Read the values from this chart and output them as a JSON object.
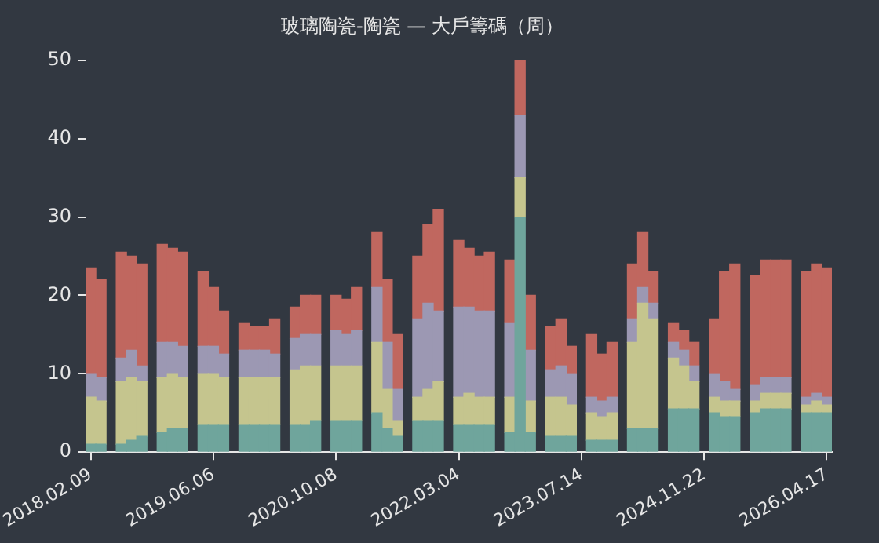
{
  "chart_data": {
    "type": "bar",
    "title": "玻璃陶瓷-陶瓷 — 大戶籌碼（周）",
    "stacked": true,
    "grid": false,
    "legend": false,
    "categories": [
      "2018.02.09",
      null,
      null,
      null,
      null,
      null,
      null,
      null,
      null,
      null,
      null,
      null,
      "2019.06.06",
      null,
      null,
      null,
      null,
      null,
      null,
      null,
      null,
      null,
      null,
      null,
      "2020.10.08",
      null,
      null,
      null,
      null,
      null,
      null,
      null,
      null,
      null,
      null,
      null,
      "2022.03.04",
      null,
      null,
      null,
      null,
      null,
      null,
      null,
      null,
      null,
      null,
      null,
      "2023.07.14",
      null,
      null,
      null,
      null,
      null,
      null,
      null,
      null,
      null,
      null,
      null,
      "2024.11.22",
      null,
      null,
      null,
      null,
      null,
      null,
      null,
      null,
      null,
      null,
      null,
      "2026.04.17"
    ],
    "ylim": [
      0,
      50
    ],
    "yticks": [
      0,
      10,
      20,
      30,
      40,
      50
    ],
    "series": [
      {
        "color": "#6fa59c",
        "values": [
          1,
          1,
          null,
          1,
          1.5,
          2,
          null,
          2.5,
          3,
          3,
          null,
          3.5,
          3.5,
          3.5,
          null,
          3.5,
          3.5,
          3.5,
          3.5,
          null,
          3.5,
          3.5,
          4,
          null,
          4,
          4,
          4,
          null,
          5,
          3,
          2,
          null,
          4,
          4,
          4,
          null,
          3.5,
          3.5,
          3.5,
          3.5,
          null,
          2.5,
          30,
          2.5,
          null,
          2,
          2,
          2,
          null,
          1.5,
          1.5,
          1.5,
          null,
          3,
          3,
          3,
          null,
          5.5,
          5.5,
          5.5,
          null,
          5,
          4.5,
          4.5,
          null,
          5,
          5.5,
          5.5,
          5.5,
          null,
          5,
          5,
          5
        ]
      },
      {
        "color": "#c5c58e",
        "values": [
          6,
          5.5,
          null,
          8,
          8,
          7,
          null,
          7,
          7,
          6.5,
          null,
          6.5,
          6.5,
          6,
          null,
          6,
          6,
          6,
          6,
          null,
          7,
          7.5,
          7,
          null,
          7,
          7,
          7,
          null,
          9,
          5,
          2,
          null,
          3,
          4,
          5,
          null,
          3.5,
          4,
          3.5,
          3.5,
          null,
          4.5,
          5,
          4,
          null,
          5,
          5,
          4,
          null,
          3.5,
          3,
          3.5,
          null,
          11,
          16,
          14,
          null,
          6.5,
          5.5,
          3.5,
          null,
          2,
          2,
          2,
          null,
          1.5,
          2,
          2,
          2,
          null,
          1,
          1.5,
          1
        ]
      },
      {
        "color": "#9c98b3",
        "values": [
          3,
          3,
          null,
          3,
          3.5,
          2,
          null,
          4.5,
          4,
          4,
          null,
          3.5,
          3.5,
          3,
          null,
          3.5,
          3.5,
          3.5,
          3,
          null,
          4,
          4,
          4,
          null,
          4.5,
          4,
          4.5,
          null,
          7,
          6,
          4,
          null,
          10,
          11,
          9,
          null,
          11.5,
          11,
          11,
          11,
          null,
          9.5,
          8,
          6.5,
          null,
          3.5,
          4,
          4,
          null,
          2,
          2,
          2,
          null,
          3,
          2,
          2,
          null,
          2,
          2,
          2,
          null,
          3,
          2.5,
          1.5,
          null,
          2,
          2,
          2,
          2,
          null,
          1,
          1,
          1
        ]
      },
      {
        "color": "#c0675f",
        "values": [
          13.5,
          12.5,
          null,
          13.5,
          12,
          13,
          null,
          12.5,
          12,
          12,
          null,
          9.5,
          7.5,
          5.5,
          null,
          3.5,
          3,
          3,
          4.5,
          null,
          4,
          5,
          5,
          null,
          4.5,
          4.5,
          5.5,
          null,
          7,
          8,
          7,
          null,
          8,
          10,
          13,
          null,
          8.5,
          7.5,
          7,
          7.5,
          null,
          8,
          7,
          7,
          null,
          5.5,
          6,
          3.5,
          null,
          8,
          6,
          7,
          null,
          7,
          7,
          4,
          null,
          2.5,
          2.5,
          3,
          null,
          7,
          14,
          16,
          null,
          14,
          15,
          15,
          15,
          null,
          16,
          16.5,
          16.5
        ]
      }
    ]
  }
}
